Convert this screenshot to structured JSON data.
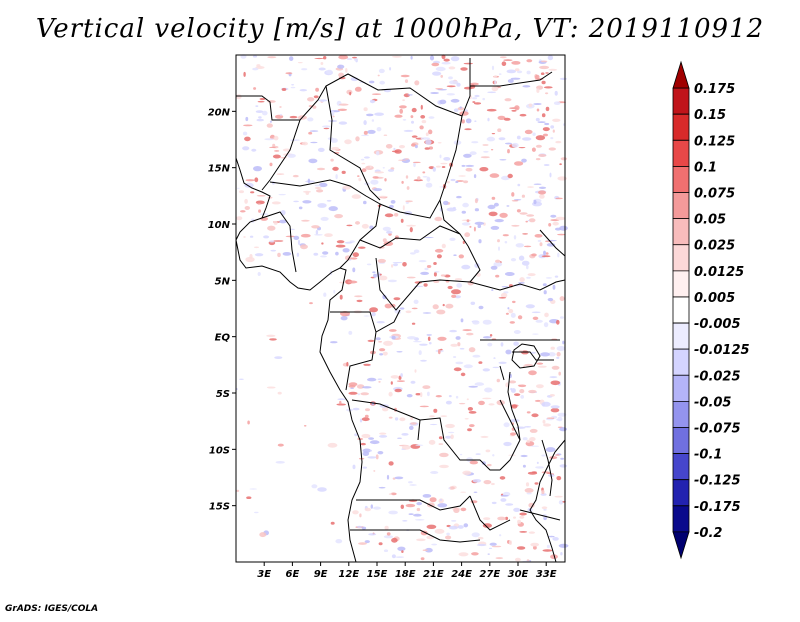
{
  "title": "Vertical velocity [m/s] at 1000hPa, VT: 2019110912",
  "footer": "GrADS: IGES/COLA",
  "map": {
    "lon_min": 0,
    "lon_max": 35,
    "lat_min": -20,
    "lat_max": 25,
    "y_ticks": [
      {
        "lat": 20,
        "label": "20N"
      },
      {
        "lat": 15,
        "label": "15N"
      },
      {
        "lat": 10,
        "label": "10N"
      },
      {
        "lat": 5,
        "label": "5N"
      },
      {
        "lat": 0,
        "label": "EQ"
      },
      {
        "lat": -5,
        "label": "5S"
      },
      {
        "lat": -10,
        "label": "10S"
      },
      {
        "lat": -15,
        "label": "15S"
      }
    ],
    "x_ticks": [
      {
        "lon": 3,
        "label": "3E"
      },
      {
        "lon": 6,
        "label": "6E"
      },
      {
        "lon": 9,
        "label": "9E"
      },
      {
        "lon": 12,
        "label": "12E"
      },
      {
        "lon": 15,
        "label": "15E"
      },
      {
        "lon": 18,
        "label": "18E"
      },
      {
        "lon": 21,
        "label": "21E"
      },
      {
        "lon": 24,
        "label": "24E"
      },
      {
        "lon": 27,
        "label": "27E"
      },
      {
        "lon": 30,
        "label": "30E"
      },
      {
        "lon": 33,
        "label": "33E"
      }
    ]
  },
  "colorbar": {
    "levels": [
      "0.175",
      "0.15",
      "0.125",
      "0.1",
      "0.075",
      "0.05",
      "0.025",
      "0.0125",
      "0.005",
      "-0.005",
      "-0.0125",
      "-0.025",
      "-0.05",
      "-0.075",
      "-0.1",
      "-0.125",
      "-0.175",
      "-0.2"
    ],
    "colors": [
      "#a00000",
      "#c0141a",
      "#d82a2a",
      "#e84848",
      "#f07070",
      "#f49a9a",
      "#f8bcbc",
      "#fcd8d8",
      "#fff0f0",
      "#ffffff",
      "#ececff",
      "#d4d4ff",
      "#b4b4f8",
      "#9494ee",
      "#7070e0",
      "#4646cc",
      "#2222b0",
      "#0a0a8c",
      "#000070"
    ]
  }
}
